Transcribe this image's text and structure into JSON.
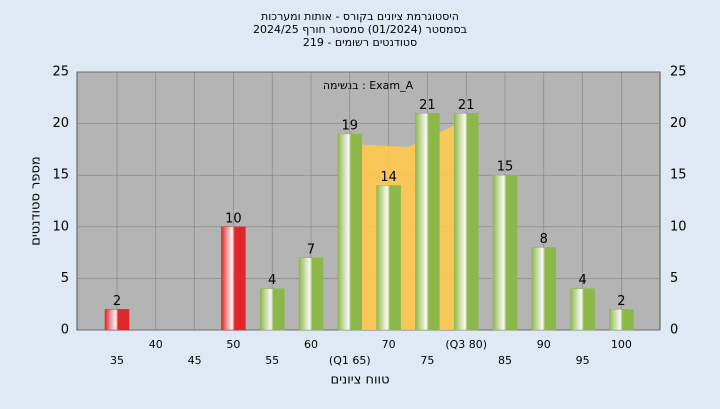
{
  "chart_data": {
    "type": "bar",
    "title": [
      "היסטוגרמת ציונים בקורס - אותות ומערכות",
      "בסמסטר  (01/2024)  סמסטר חורף 2024/25",
      "סטודנטים רשומים - 219"
    ],
    "annotation": "בנשימה : Exam_A",
    "x_label": "טווח ציונים",
    "y_label": "מספר סטודנטים",
    "categories": [
      "35",
      "40",
      "45",
      "50",
      "55",
      "60",
      "(Q1 65)",
      "70",
      "75",
      "(Q3 80)",
      "85",
      "90",
      "95",
      "100"
    ],
    "values": [
      2,
      0,
      0,
      10,
      4,
      7,
      19,
      14,
      21,
      21,
      15,
      8,
      4,
      2
    ],
    "colors": [
      "#e0262a",
      "#e0262a",
      "#e0262a",
      "#e0262a",
      "#8cb84a",
      "#8cb84a",
      "#8cb84a",
      "#8cb84a",
      "#8cb84a",
      "#8cb84a",
      "#8cb84a",
      "#8cb84a",
      "#8cb84a",
      "#8cb84a"
    ],
    "ylim": [
      0,
      25
    ],
    "yticks": [
      0,
      5,
      10,
      15,
      20,
      25
    ],
    "grid": true
  }
}
